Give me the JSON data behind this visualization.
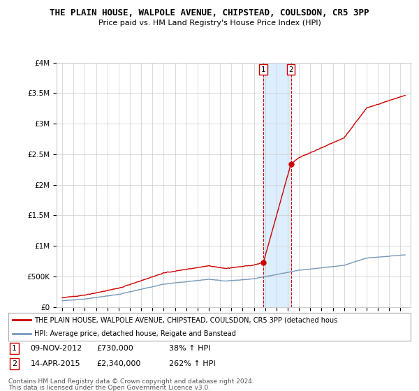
{
  "title": "THE PLAIN HOUSE, WALPOLE AVENUE, CHIPSTEAD, COULSDON, CR5 3PP",
  "subtitle": "Price paid vs. HM Land Registry's House Price Index (HPI)",
  "ylabel_ticks": [
    "£0",
    "£500K",
    "£1M",
    "£1.5M",
    "£2M",
    "£2.5M",
    "£3M",
    "£3.5M",
    "£4M"
  ],
  "ylabel_values": [
    0,
    500000,
    1000000,
    1500000,
    2000000,
    2500000,
    3000000,
    3500000,
    4000000
  ],
  "ylim": [
    0,
    4000000
  ],
  "sale1": {
    "date_str": "09-NOV-2012",
    "year": 2012.85,
    "price": 730000,
    "label": "1",
    "pct": "38% ↑ HPI"
  },
  "sale2": {
    "date_str": "14-APR-2015",
    "year": 2015.28,
    "price": 2340000,
    "label": "2",
    "pct": "262% ↑ HPI"
  },
  "red_line_color": "#cc0000",
  "blue_line_color": "#7799bb",
  "highlight_fill": "#ddeeff",
  "grid_color": "#cccccc",
  "legend_text1": "THE PLAIN HOUSE, WALPOLE AVENUE, CHIPSTEAD, COULSDON, CR5 3PP (detached hous",
  "legend_text2": "HPI: Average price, detached house, Reigate and Banstead",
  "footer1": "Contains HM Land Registry data © Crown copyright and database right 2024.",
  "footer2": "This data is licensed under the Open Government Licence v3.0.",
  "background_color": "#ffffff"
}
